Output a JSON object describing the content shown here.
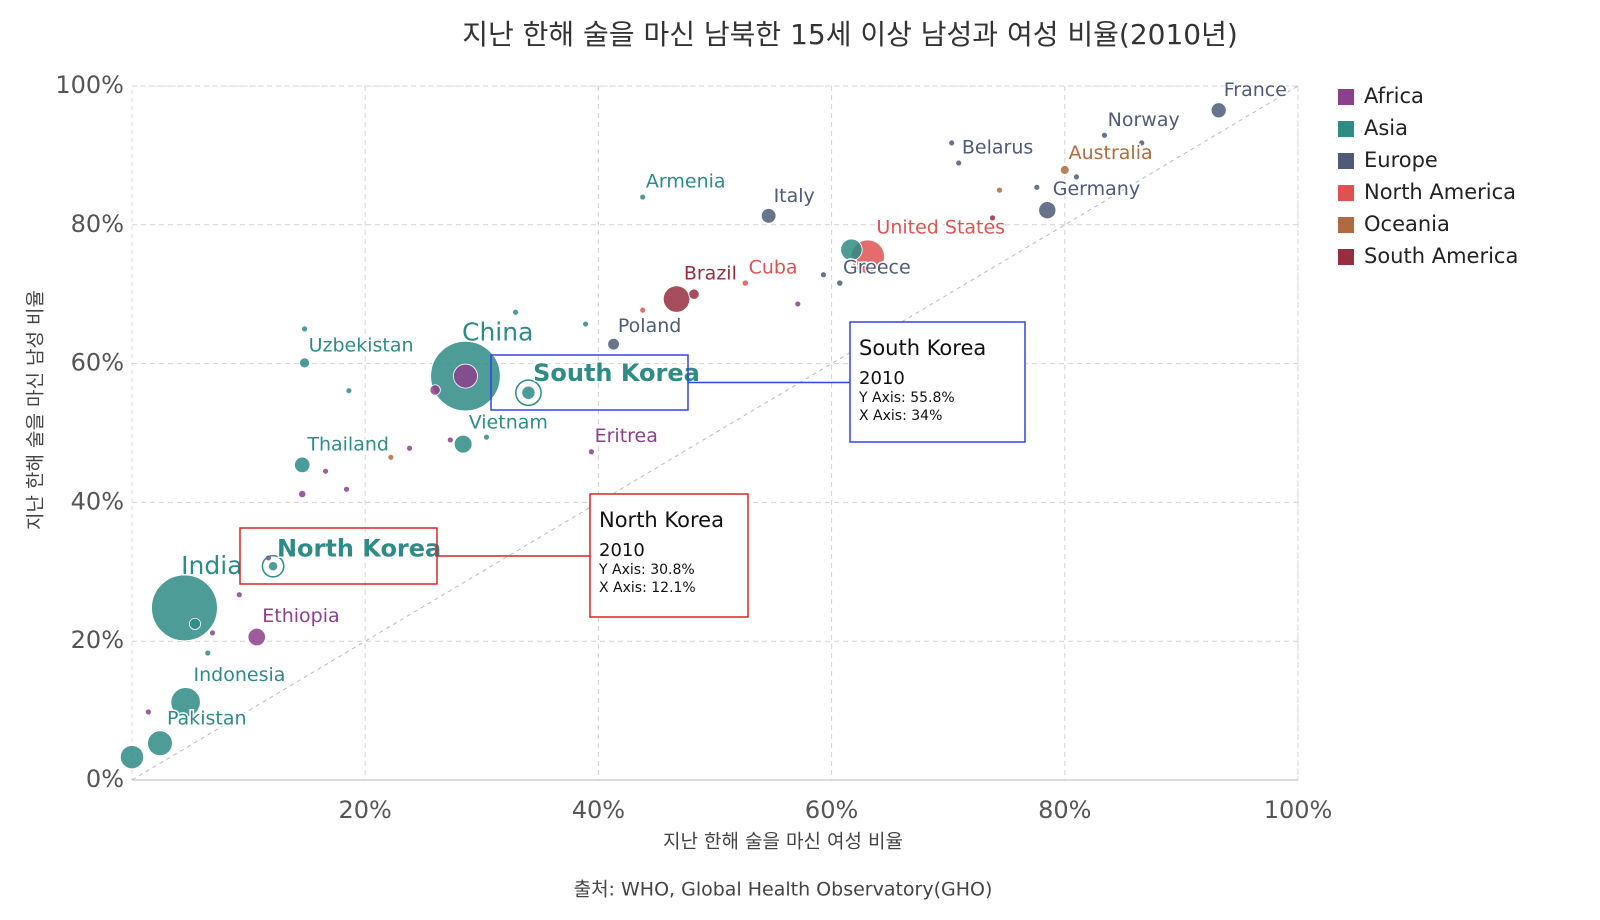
{
  "chart_data": {
    "type": "scatter",
    "title": "지난 한해 술을 마신 남북한 15세 이상 남성과 여성 비율(2010년)",
    "x_label": "지난 한해 술을 마신 여성 비율",
    "y_label": "지난 한해 술을 마신 남성 비율",
    "source": "출처: WHO, Global Health Observatory(GHO)",
    "xlim": [
      0,
      100
    ],
    "ylim": [
      0,
      100
    ],
    "xticks": [
      {
        "value": 20,
        "label": "20%"
      },
      {
        "value": 40,
        "label": "40%"
      },
      {
        "value": 60,
        "label": "60%"
      },
      {
        "value": 80,
        "label": "80%"
      },
      {
        "value": 100,
        "label": "100%"
      }
    ],
    "yticks": [
      {
        "value": 0,
        "label": "0%"
      },
      {
        "value": 20,
        "label": "20%"
      },
      {
        "value": 40,
        "label": "40%"
      },
      {
        "value": 60,
        "label": "60%"
      },
      {
        "value": 80,
        "label": "80%"
      },
      {
        "value": 100,
        "label": "100%"
      }
    ],
    "grid": true,
    "legend": "right",
    "series": [
      {
        "name": "Africa",
        "color": "#8e3f8c",
        "x": [
          39.4,
          10.7,
          28.6,
          14.6,
          26.0,
          23.8,
          57.1,
          9.2,
          27.3,
          16.6,
          18.4,
          1.4,
          11.7,
          6.9
        ],
        "values": [
          47.3,
          20.6,
          58.2,
          41.2,
          56.2,
          47.8,
          68.6,
          26.7,
          49.0,
          44.5,
          41.9,
          9.8,
          32.0,
          21.2
        ],
        "sizes": [
          5,
          85,
          160,
          15,
          30,
          10,
          3,
          10,
          8,
          6,
          4,
          5,
          4,
          5
        ],
        "labels": [
          "Eritrea",
          "Ethiopia",
          null,
          null,
          null,
          null,
          null,
          null,
          null,
          null,
          null,
          null,
          null,
          null
        ]
      },
      {
        "name": "Asia",
        "color": "#2e8b85",
        "x": [
          28.6,
          4.5,
          34,
          12.1,
          14.8,
          28.4,
          14.6,
          4.6,
          2.4,
          43.8,
          61.7,
          0,
          5.4,
          6.5,
          32.9,
          38.9,
          14.8,
          18.6,
          30.4
        ],
        "values": [
          58.2,
          24.8,
          55.8,
          30.8,
          60.1,
          48.4,
          45.4,
          11.2,
          5.3,
          84.0,
          76.4,
          3.3,
          22.5,
          18.3,
          67.4,
          65.7,
          65.0,
          56.1,
          49.4
        ],
        "sizes": [
          1340,
          1200,
          49,
          24,
          28,
          88,
          67,
          240,
          170,
          3,
          128,
          150,
          35,
          8,
          4,
          4,
          4,
          3,
          5
        ],
        "labels": [
          "China",
          "India",
          "South Korea",
          "North Korea",
          "Uzbekistan",
          "Vietnam",
          "Thailand",
          "Indonesia",
          "Pakistan",
          "Armenia",
          null,
          null,
          null,
          null,
          null,
          null,
          null,
          null,
          null
        ]
      },
      {
        "name": "Europe",
        "color": "#4e5a78",
        "x": [
          93.2,
          83.4,
          70.9,
          78.5,
          54.6,
          60.7,
          41.3,
          70.3,
          81.0,
          86.6,
          77.6,
          59.3
        ],
        "values": [
          96.5,
          92.9,
          88.9,
          82.1,
          81.3,
          71.6,
          62.8,
          91.8,
          86.9,
          91.8,
          85.4,
          72.8
        ],
        "sizes": [
          63,
          5,
          9.5,
          82,
          60,
          11,
          38,
          5,
          10,
          5,
          5,
          5
        ],
        "labels": [
          "France",
          "Norway",
          "Belarus",
          "Germany",
          "Italy",
          "Greece",
          "Poland",
          null,
          null,
          null,
          null,
          null
        ]
      },
      {
        "name": "North America",
        "color": "#e05252",
        "x": [
          63.1,
          52.6,
          43.8
        ],
        "values": [
          75.4,
          71.6,
          67.7
        ],
        "sizes": [
          310,
          11,
          4
        ],
        "labels": [
          "United States",
          "Cuba",
          null
        ]
      },
      {
        "name": "Oceania",
        "color": "#b06a3f",
        "x": [
          80.0,
          74.4,
          22.2
        ],
        "values": [
          87.9,
          85.0,
          46.5
        ],
        "sizes": [
          22,
          3,
          3
        ],
        "labels": [
          "Australia",
          null,
          null
        ]
      },
      {
        "name": "South America",
        "color": "#952e3f",
        "x": [
          46.7,
          48.2,
          73.8
        ],
        "values": [
          69.3,
          70.0,
          81.0
        ],
        "sizes": [
          195,
          30,
          5
        ],
        "labels": [
          "Brazil",
          null,
          null
        ]
      }
    ],
    "tooltips": [
      {
        "title": "South Korea",
        "year": "2010",
        "y_text": "Y Axis: 55.8%",
        "x_text": "X Axis: 34%"
      },
      {
        "title": "North Korea",
        "year": "2010",
        "y_text": "Y Axis: 30.8%",
        "x_text": "X Axis: 12.1%"
      }
    ]
  }
}
